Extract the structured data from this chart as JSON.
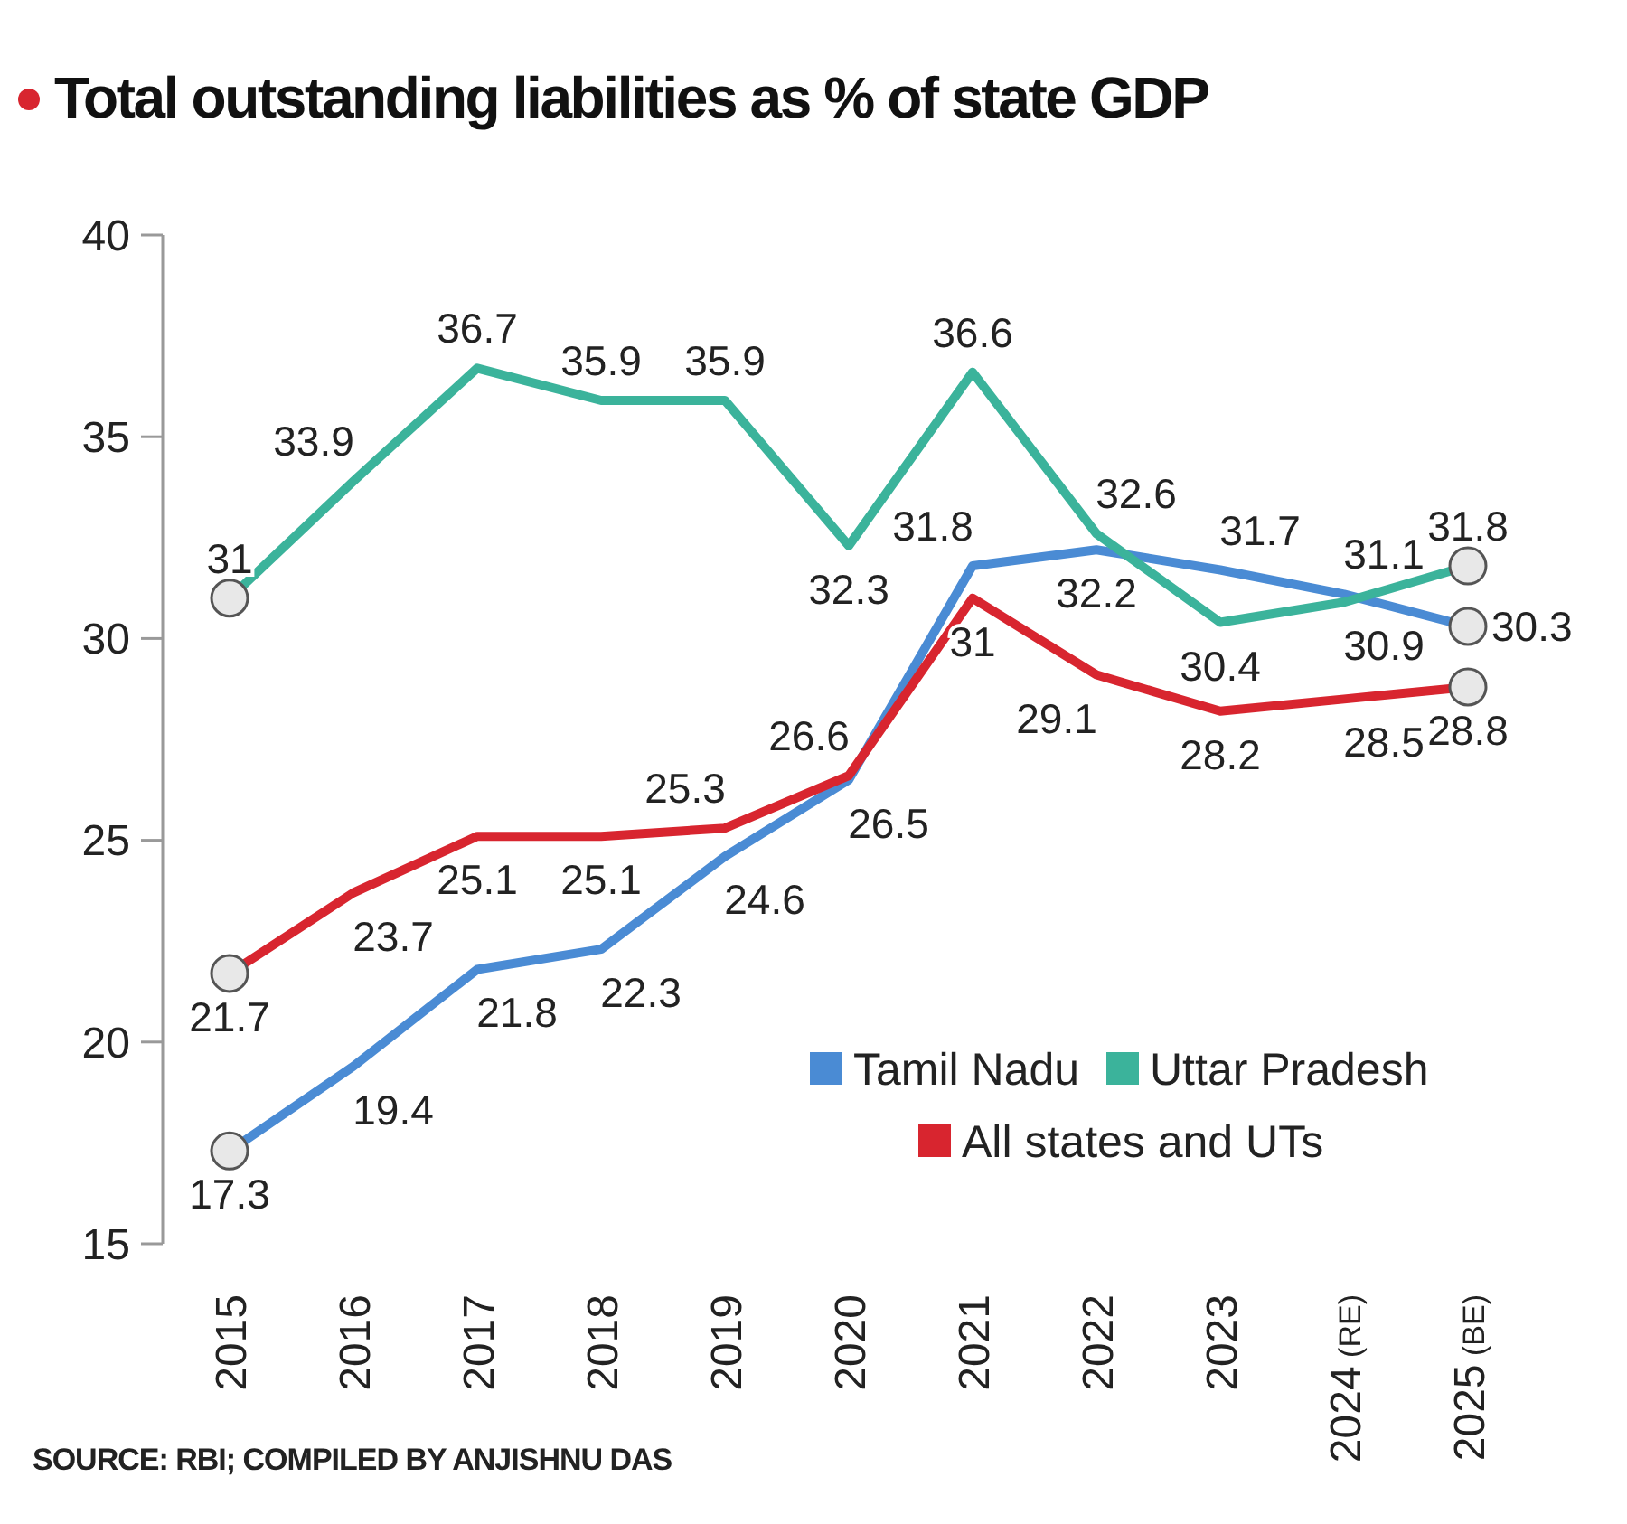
{
  "chart_data": {
    "type": "line",
    "title": "Total outstanding liabilities as % of state GDP",
    "categories": [
      "2015",
      "2016",
      "2017",
      "2018",
      "2019",
      "2020",
      "2021",
      "2022",
      "2023",
      "2024 (RE)",
      "2025 (BE)"
    ],
    "series": [
      {
        "name": "Tamil Nadu",
        "color": "#4a8bd4",
        "values": [
          17.3,
          19.4,
          21.8,
          22.3,
          24.6,
          26.5,
          31.8,
          32.2,
          31.7,
          31.1,
          30.3
        ]
      },
      {
        "name": "Uttar Pradesh",
        "color": "#3bb39b",
        "values": [
          31,
          33.9,
          36.7,
          35.9,
          35.9,
          32.3,
          36.6,
          32.6,
          30.4,
          30.9,
          31.8
        ]
      },
      {
        "name": "All states and UTs",
        "color": "#d8252f",
        "values": [
          21.7,
          23.7,
          25.1,
          25.1,
          25.3,
          26.6,
          31,
          29.1,
          28.2,
          28.5,
          28.8
        ]
      }
    ],
    "ylim": [
      15,
      40
    ],
    "yticks": [
      15,
      20,
      25,
      30,
      35,
      40
    ],
    "data_labels": true,
    "legend": "bottom right",
    "line_style": "solid",
    "annotations": [
      "SOURCE: RBI; COMPILED BY ANJISHNU DAS"
    ]
  }
}
